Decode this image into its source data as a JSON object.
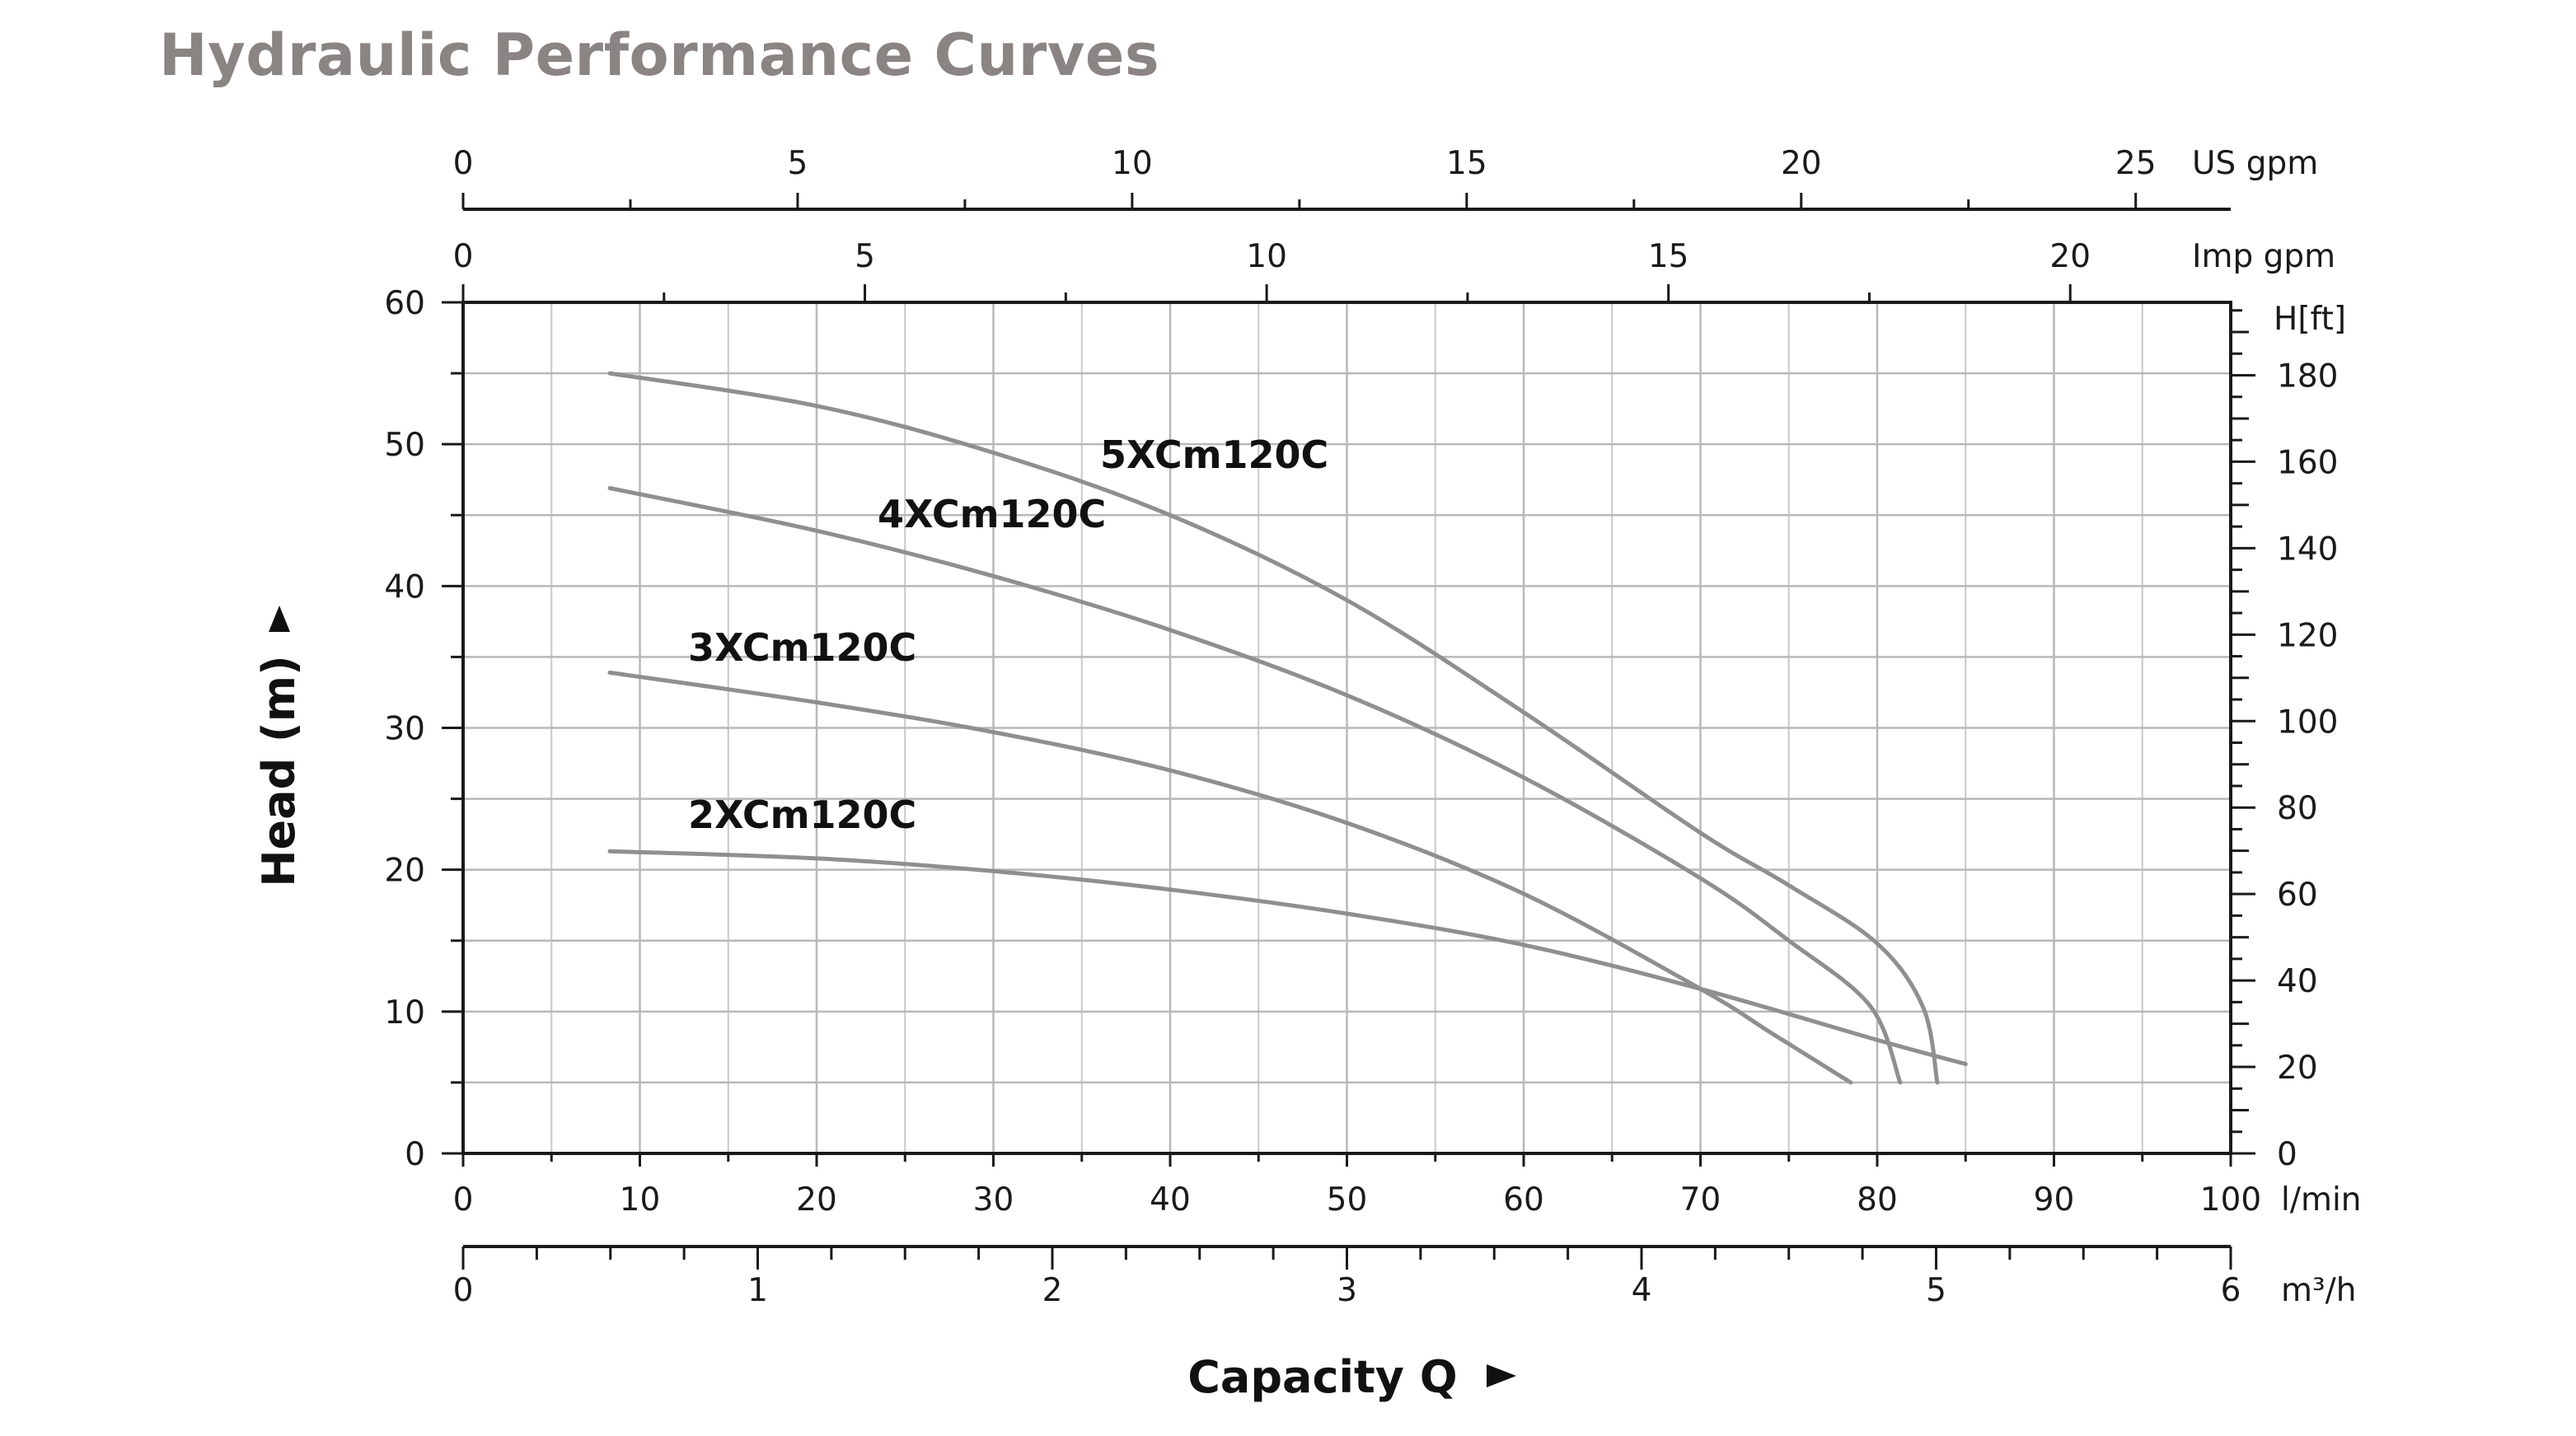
{
  "title": "Hydraulic Performance Curves",
  "chart_data": {
    "type": "line",
    "title": "Hydraulic Performance Curves",
    "xlabel": "Capacity Q",
    "ylabel": "Head (m)",
    "xlim": [
      0,
      100
    ],
    "ylim": [
      0,
      60
    ],
    "x_unit": "l/min",
    "x_ticks": [
      0,
      10,
      20,
      30,
      40,
      50,
      60,
      70,
      80,
      90,
      100
    ],
    "y_ticks": [
      0,
      10,
      20,
      30,
      40,
      50,
      60
    ],
    "secondary_axes": {
      "m3h": {
        "unit": "m³/h",
        "ticks": [
          0,
          1,
          2,
          3,
          4,
          5,
          6
        ],
        "range": [
          0,
          6
        ]
      },
      "us_gpm": {
        "unit": "US gpm",
        "ticks": [
          0,
          5,
          10,
          15,
          20,
          25
        ],
        "factor_lpm": 3.785
      },
      "imp_gpm": {
        "unit": "Imp gpm",
        "ticks": [
          0,
          5,
          10,
          15,
          20
        ],
        "factor_lpm": 4.546
      },
      "h_ft": {
        "unit": "H[ft]",
        "ticks": [
          0,
          20,
          40,
          60,
          80,
          100,
          120,
          140,
          160,
          180
        ],
        "factor_m": 3.281
      }
    },
    "series": [
      {
        "name": "2XCm120C",
        "x": [
          8.3,
          20,
          30,
          40,
          50,
          60,
          70,
          80,
          85
        ],
        "y": [
          21.3,
          20.8,
          19.9,
          18.6,
          16.9,
          14.7,
          11.6,
          8.0,
          6.3
        ]
      },
      {
        "name": "3XCm120C",
        "x": [
          8.3,
          20,
          30,
          40,
          50,
          60,
          70,
          74,
          78.5
        ],
        "y": [
          33.9,
          31.8,
          29.7,
          27.0,
          23.3,
          18.3,
          11.6,
          8.5,
          5.0
        ]
      },
      {
        "name": "4XCm120C",
        "x": [
          8.3,
          20,
          30,
          40,
          50,
          60,
          70,
          75,
          79.6,
          81.3
        ],
        "y": [
          46.9,
          43.9,
          40.7,
          36.9,
          32.3,
          26.5,
          19.4,
          15.0,
          10.4,
          5.0
        ]
      },
      {
        "name": "5XCm120C",
        "x": [
          8.3,
          20,
          30,
          40,
          50,
          60,
          70,
          75,
          80,
          82.6,
          83.4
        ],
        "y": [
          55.0,
          52.7,
          49.4,
          45.0,
          39.0,
          31.1,
          22.6,
          18.9,
          14.8,
          10.3,
          5.0
        ]
      }
    ]
  }
}
